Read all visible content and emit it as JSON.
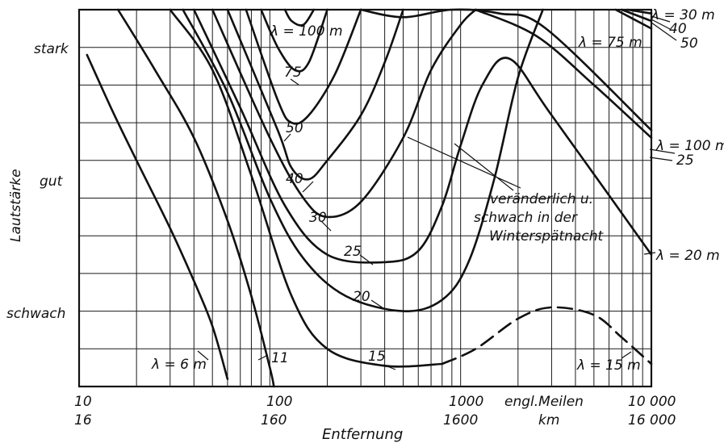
{
  "chart_data": {
    "type": "line",
    "title": "",
    "xlabel": "Entfernung",
    "ylabel": "Lautstärke",
    "x_scale": "log",
    "x_unit_primary": "engl.Meilen",
    "x_unit_secondary": "km",
    "xlim": [
      10,
      10000
    ],
    "x_ticks": [
      {
        "miles": "10",
        "km": "16"
      },
      {
        "miles": "100",
        "km": "160"
      },
      {
        "miles": "1000",
        "km": "1600"
      },
      {
        "miles": "10 000",
        "km": "16 000"
      }
    ],
    "y_categories": [
      "stark",
      "gut",
      "schwach"
    ],
    "grid": true,
    "legend": "none",
    "series": [
      {
        "label": "λ = 6 m",
        "points": [
          [
            11,
            0.88
          ],
          [
            15,
            0.73
          ],
          [
            20,
            0.6
          ],
          [
            30,
            0.42
          ],
          [
            40,
            0.28
          ],
          [
            50,
            0.16
          ],
          [
            60,
            0.02
          ]
        ]
      },
      {
        "label": "11",
        "points": [
          [
            16,
            1
          ],
          [
            25,
            0.84
          ],
          [
            40,
            0.66
          ],
          [
            60,
            0.44
          ],
          [
            80,
            0.24
          ],
          [
            100,
            0.05
          ],
          [
            105,
            0
          ]
        ]
      },
      {
        "label": "15",
        "points": [
          [
            30,
            1
          ],
          [
            50,
            0.84
          ],
          [
            80,
            0.56
          ],
          [
            130,
            0.24
          ],
          [
            200,
            0.1
          ],
          [
            400,
            0.055
          ],
          [
            800,
            0.06
          ]
        ],
        "dashed_continuation": [
          [
            800,
            0.06
          ],
          [
            1200,
            0.1
          ],
          [
            2000,
            0.18
          ],
          [
            3000,
            0.21
          ],
          [
            5000,
            0.19
          ],
          [
            7000,
            0.13
          ],
          [
            10000,
            0.06
          ]
        ]
      },
      {
        "label": "20",
        "points": [
          [
            35,
            1
          ],
          [
            60,
            0.78
          ],
          [
            100,
            0.5
          ],
          [
            150,
            0.34
          ],
          [
            250,
            0.24
          ],
          [
            500,
            0.2
          ],
          [
            800,
            0.23
          ],
          [
            1100,
            0.33
          ],
          [
            1500,
            0.55
          ],
          [
            2000,
            0.82
          ],
          [
            2700,
            1
          ]
        ]
      },
      {
        "label": "25",
        "points": [
          [
            40,
            1
          ],
          [
            70,
            0.74
          ],
          [
            120,
            0.48
          ],
          [
            200,
            0.35
          ],
          [
            400,
            0.33
          ],
          [
            600,
            0.36
          ],
          [
            800,
            0.48
          ],
          [
            1000,
            0.64
          ],
          [
            1300,
            0.8
          ],
          [
            1800,
            0.87
          ],
          [
            3000,
            0.72
          ],
          [
            10000,
            0.35
          ]
        ]
      },
      {
        "label": "30",
        "points": [
          [
            50,
            1
          ],
          [
            100,
            0.66
          ],
          [
            150,
            0.5
          ],
          [
            200,
            0.45
          ],
          [
            300,
            0.49
          ],
          [
            500,
            0.66
          ],
          [
            700,
            0.84
          ],
          [
            1000,
            0.96
          ],
          [
            1200,
            1
          ]
        ]
      },
      {
        "label": "40",
        "points": [
          [
            60,
            1
          ],
          [
            110,
            0.68
          ],
          [
            130,
            0.58
          ],
          [
            160,
            0.55
          ],
          [
            200,
            0.6
          ],
          [
            300,
            0.72
          ],
          [
            400,
            0.86
          ],
          [
            500,
            1
          ]
        ]
      },
      {
        "label": "50",
        "points": [
          [
            75,
            1
          ],
          [
            110,
            0.76
          ],
          [
            130,
            0.7
          ],
          [
            160,
            0.72
          ],
          [
            220,
            0.83
          ],
          [
            300,
            1
          ]
        ]
      },
      {
        "label": "75",
        "points": [
          [
            90,
            1
          ],
          [
            110,
            0.9
          ],
          [
            135,
            0.84
          ],
          [
            160,
            0.86
          ],
          [
            200,
            1
          ]
        ]
      },
      {
        "label": "λ = 100 m",
        "points": [
          [
            120,
            1
          ],
          [
            130,
            0.97
          ],
          [
            150,
            0.96
          ],
          [
            170,
            1
          ]
        ]
      },
      {
        "label": "λ = 75 m",
        "points": [
          [
            300,
            1
          ],
          [
            500,
            0.98
          ],
          [
            900,
            1
          ],
          [
            1600,
            0.99
          ],
          [
            2800,
            0.95
          ],
          [
            10000,
            0.68
          ]
        ]
      },
      {
        "label": "λ = 100 m",
        "points": [
          [
            1200,
            1
          ],
          [
            2500,
            0.93
          ],
          [
            5000,
            0.8
          ],
          [
            10000,
            0.66
          ]
        ]
      },
      {
        "label": "λ = 30 m",
        "points": [
          [
            7500,
            1
          ],
          [
            10000,
            0.99
          ]
        ]
      },
      {
        "label": "40",
        "points": [
          [
            7000,
            1
          ],
          [
            10000,
            0.97
          ]
        ]
      },
      {
        "label": "50",
        "points": [
          [
            6500,
            1
          ],
          [
            10000,
            0.95
          ]
        ]
      }
    ],
    "annotations": [
      {
        "text": "veränderlich u."
      },
      {
        "text": "schwach in der"
      },
      {
        "text": "Winterspätnacht"
      },
      {
        "text": "λ = 20 m"
      },
      {
        "text": "25"
      },
      {
        "text": "λ = 15 m"
      }
    ]
  }
}
